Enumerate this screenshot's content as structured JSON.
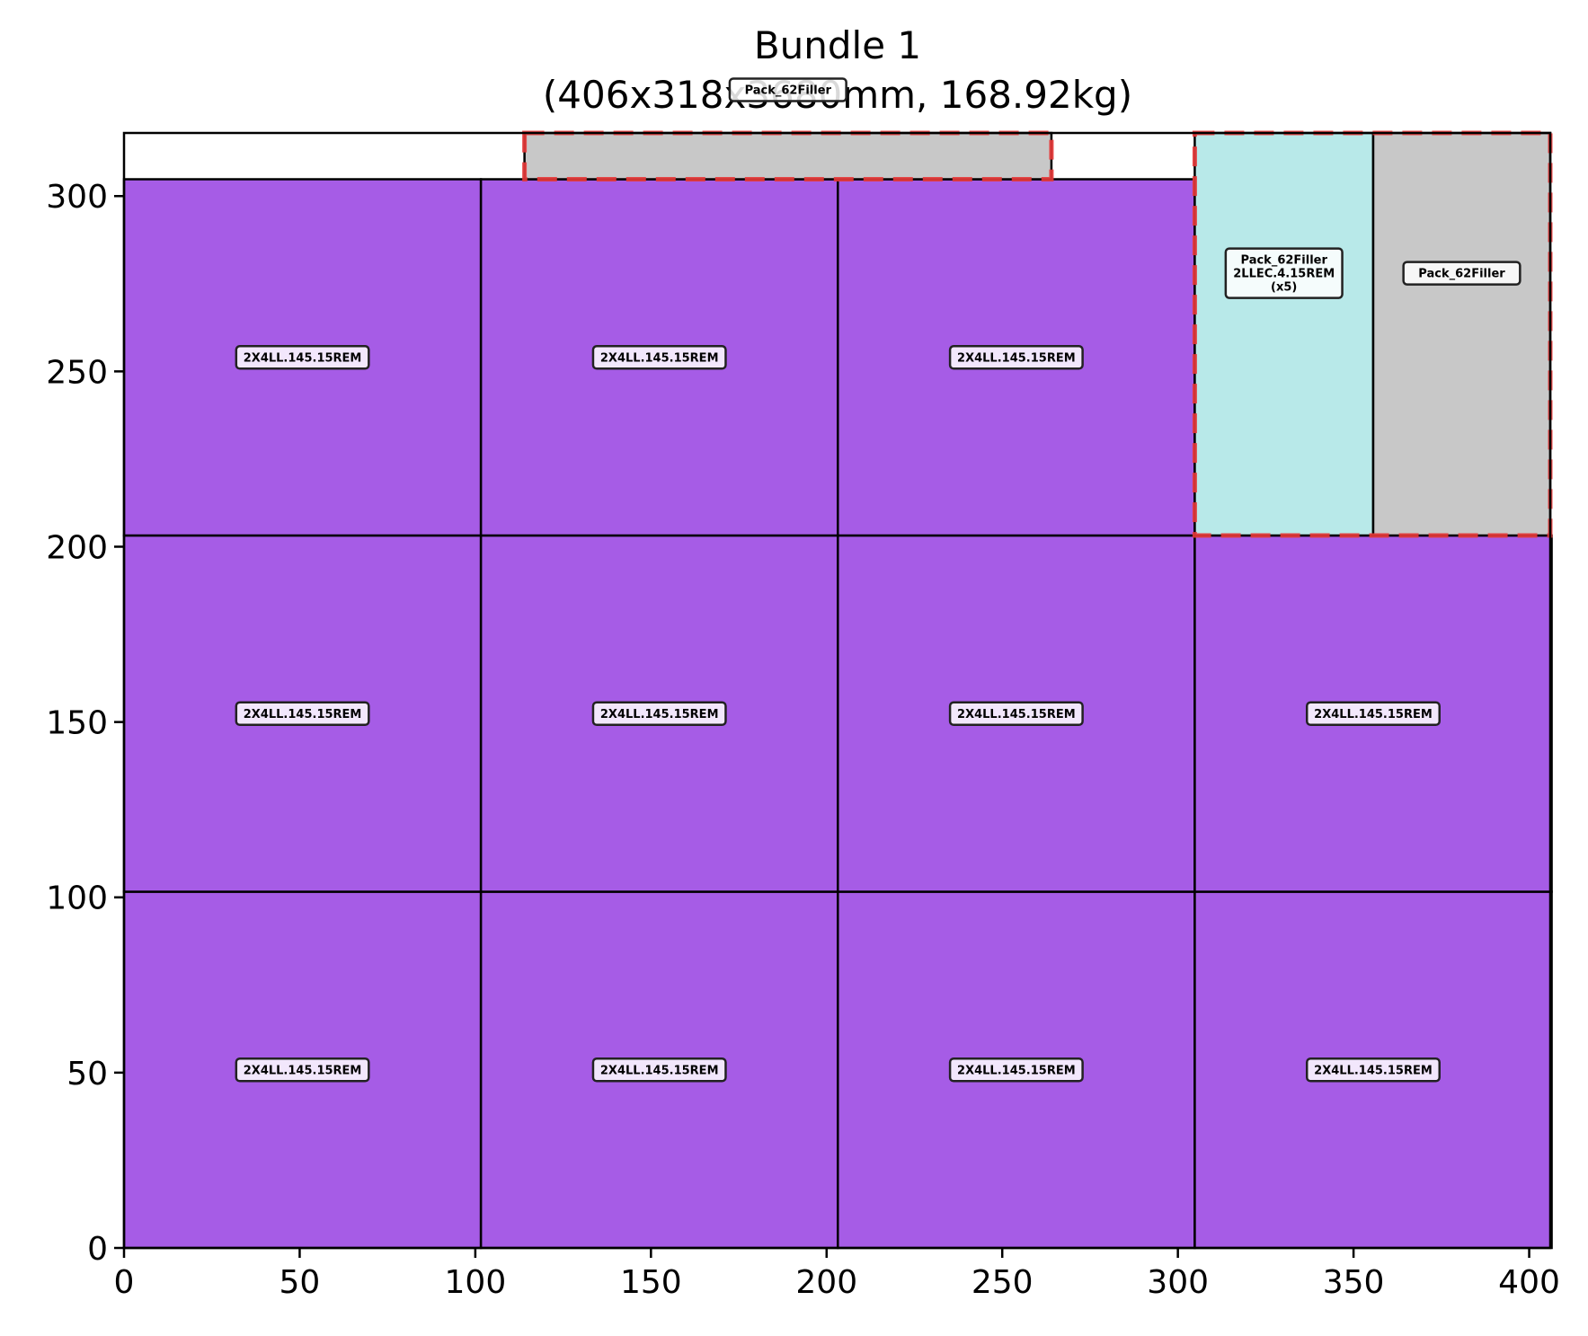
{
  "chart_data": {
    "type": "packing-layout",
    "title_line1": "Bundle 1",
    "title_line2": "(406x318x3680mm, 168.92kg)",
    "xlabel": "",
    "ylabel": "",
    "xlim": [
      0,
      406
    ],
    "ylim": [
      0,
      318
    ],
    "xticks": [
      0,
      50,
      100,
      150,
      200,
      250,
      300,
      350,
      400
    ],
    "yticks": [
      0,
      50,
      100,
      150,
      200,
      250,
      300
    ],
    "colors": {
      "primary": "#a65ce6",
      "secondary": "#b8e9e9",
      "filler": "#c8c8c8",
      "filler_border": "#e83a3a",
      "edge": "#000000"
    },
    "items": [
      {
        "id": "item-1",
        "label": "2X4LL.145.15REM",
        "x": 0,
        "y": 0,
        "w": 101.6,
        "h": 101.6,
        "kind": "primary"
      },
      {
        "id": "item-2",
        "label": "2X4LL.145.15REM",
        "x": 101.6,
        "y": 0,
        "w": 101.6,
        "h": 101.6,
        "kind": "primary"
      },
      {
        "id": "item-3",
        "label": "2X4LL.145.15REM",
        "x": 203.2,
        "y": 0,
        "w": 101.6,
        "h": 101.6,
        "kind": "primary"
      },
      {
        "id": "item-4",
        "label": "2X4LL.145.15REM",
        "x": 304.8,
        "y": 0,
        "w": 101.6,
        "h": 101.6,
        "kind": "primary"
      },
      {
        "id": "item-5",
        "label": "2X4LL.145.15REM",
        "x": 0,
        "y": 101.6,
        "w": 101.6,
        "h": 101.6,
        "kind": "primary"
      },
      {
        "id": "item-6",
        "label": "2X4LL.145.15REM",
        "x": 101.6,
        "y": 101.6,
        "w": 101.6,
        "h": 101.6,
        "kind": "primary"
      },
      {
        "id": "item-7",
        "label": "2X4LL.145.15REM",
        "x": 203.2,
        "y": 101.6,
        "w": 101.6,
        "h": 101.6,
        "kind": "primary"
      },
      {
        "id": "item-8",
        "label": "2X4LL.145.15REM",
        "x": 304.8,
        "y": 101.6,
        "w": 101.6,
        "h": 101.6,
        "kind": "primary"
      },
      {
        "id": "item-9",
        "label": "2X4LL.145.15REM",
        "x": 0,
        "y": 203.2,
        "w": 101.6,
        "h": 101.6,
        "kind": "primary"
      },
      {
        "id": "item-10",
        "label": "2X4LL.145.15REM",
        "x": 101.6,
        "y": 203.2,
        "w": 101.6,
        "h": 101.6,
        "kind": "primary"
      },
      {
        "id": "item-11",
        "label": "2X4LL.145.15REM",
        "x": 203.2,
        "y": 203.2,
        "w": 101.6,
        "h": 101.6,
        "kind": "primary"
      },
      {
        "id": "item-12",
        "label": "Pack_62Filler\n2LLEC.4.15REM\n(x5)",
        "x": 304.8,
        "y": 203.2,
        "w": 50.8,
        "h": 114.8,
        "kind": "secondary"
      },
      {
        "id": "item-13",
        "label": "Pack_62Filler",
        "x": 355.6,
        "y": 203.2,
        "w": 50.4,
        "h": 114.8,
        "kind": "filler"
      },
      {
        "id": "item-14",
        "label": "Pack_62Filler",
        "x": 114,
        "y": 304.8,
        "w": 150,
        "h": 13.2,
        "kind": "filler"
      }
    ],
    "filler_outlines": [
      {
        "id": "outline-1",
        "x": 114,
        "y": 304.8,
        "w": 150,
        "h": 13.2
      },
      {
        "id": "outline-2",
        "x": 304.8,
        "y": 203.2,
        "w": 101.2,
        "h": 114.8
      }
    ]
  }
}
